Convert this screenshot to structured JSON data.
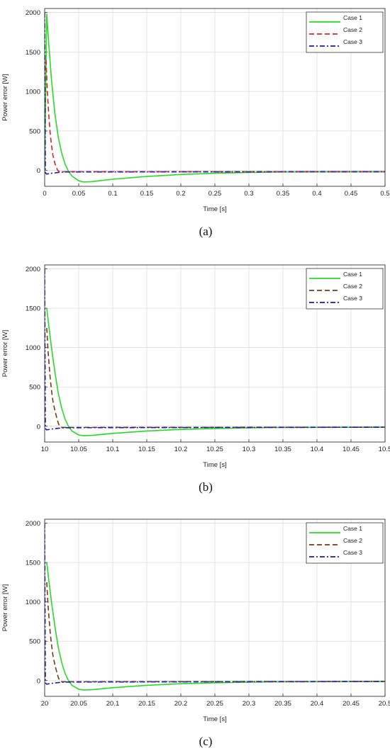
{
  "colors": {
    "case1": "#22dd22",
    "case2": "#dd2222",
    "case2_alt": "#7a3a12",
    "case3": "#1a1aaa",
    "grid": "#dcdcdc",
    "axis": "#333333"
  },
  "chart_data": [
    {
      "type": "line",
      "caption": "(a)",
      "xlabel": "Time [s]",
      "ylabel": "Power error [W]",
      "xlim": [
        0,
        0.5
      ],
      "ylim": [
        -200,
        2050
      ],
      "grid": true,
      "legend_position": "top-right",
      "x_ticks": [
        "0",
        "0.05",
        "0.1",
        "0.15",
        "0.2",
        "0.25",
        "0.3",
        "0.35",
        "0.4",
        "0.45",
        "0.5"
      ],
      "y_ticks": [
        "0",
        "500",
        "1000",
        "1500",
        "2000"
      ],
      "series": [
        {
          "name": "Case 1",
          "style": "solid",
          "color_key": "case1",
          "x": [
            0,
            0.003,
            0.006,
            0.01,
            0.015,
            0.02,
            0.025,
            0.03,
            0.035,
            0.04,
            0.05,
            0.057,
            0.07,
            0.1,
            0.15,
            0.2,
            0.25,
            0.3,
            0.35,
            0.5
          ],
          "y": [
            0,
            1980,
            1600,
            1150,
            720,
            420,
            220,
            80,
            -10,
            -70,
            -130,
            -145,
            -140,
            -110,
            -75,
            -50,
            -35,
            -25,
            -18,
            -15
          ]
        },
        {
          "name": "Case 2",
          "style": "dashed",
          "color_key": "case2",
          "x": [
            0.002,
            0.004,
            0.006,
            0.008,
            0.01,
            0.012,
            0.015,
            0.018,
            0.02,
            0.025,
            0.5
          ],
          "y": [
            1400,
            1000,
            700,
            480,
            320,
            200,
            90,
            20,
            -8,
            -15,
            -15
          ]
        },
        {
          "name": "Case 3",
          "style": "dashdot",
          "color_key": "case3",
          "x": [
            0,
            0.001,
            0.002,
            0.003,
            0.01,
            0.02,
            0.03,
            0.5
          ],
          "y": [
            2000,
            -20,
            -40,
            -45,
            -35,
            -25,
            -18,
            -15
          ]
        }
      ]
    },
    {
      "type": "line",
      "caption": "(b)",
      "xlabel": "Time [s]",
      "ylabel": "Power error [W]",
      "xlim": [
        10,
        10.5
      ],
      "ylim": [
        -200,
        2050
      ],
      "grid": true,
      "legend_position": "top-right",
      "x_ticks": [
        "10",
        "10.05",
        "10.1",
        "10.15",
        "10.2",
        "10.25",
        "10.3",
        "10.35",
        "10.4",
        "10.45",
        "10.5"
      ],
      "y_ticks": [
        "0",
        "500",
        "1000",
        "1500",
        "2000"
      ],
      "series": [
        {
          "name": "Case 1",
          "style": "solid",
          "color_key": "case1",
          "x": [
            10.003,
            10.006,
            10.01,
            10.015,
            10.02,
            10.025,
            10.03,
            10.035,
            10.04,
            10.05,
            10.057,
            10.07,
            10.1,
            10.15,
            10.2,
            10.25,
            10.3,
            10.35,
            10.5
          ],
          "y": [
            1500,
            1280,
            1000,
            690,
            420,
            230,
            90,
            0,
            -60,
            -110,
            -120,
            -115,
            -90,
            -60,
            -40,
            -28,
            -20,
            -15,
            -12
          ]
        },
        {
          "name": "Case 2",
          "style": "dashed",
          "color_key": "case2_alt",
          "x": [
            10.003,
            10.005,
            10.008,
            10.01,
            10.012,
            10.015,
            10.018,
            10.02,
            10.022,
            10.025,
            10.5
          ],
          "y": [
            1250,
            950,
            620,
            460,
            330,
            200,
            100,
            40,
            0,
            -15,
            -12
          ]
        },
        {
          "name": "Case 3",
          "style": "dashdot",
          "color_key": "case3",
          "x": [
            10,
            10.001,
            10.002,
            10.003,
            10.01,
            10.02,
            10.03,
            10.5
          ],
          "y": [
            2000,
            -20,
            -40,
            -45,
            -35,
            -25,
            -18,
            -12
          ]
        }
      ]
    },
    {
      "type": "line",
      "caption": "(c)",
      "xlabel": "Time [s]",
      "ylabel": "Power error [W]",
      "xlim": [
        20,
        20.5
      ],
      "ylim": [
        -200,
        2050
      ],
      "grid": true,
      "legend_position": "top-right",
      "x_ticks": [
        "20",
        "20.05",
        "20.1",
        "20.15",
        "20.2",
        "20.25",
        "20.3",
        "20.35",
        "20.4",
        "20.45",
        "20.5"
      ],
      "y_ticks": [
        "0",
        "500",
        "1000",
        "1500",
        "2000"
      ],
      "series": [
        {
          "name": "Case 1",
          "style": "solid",
          "color_key": "case1",
          "x": [
            20.003,
            20.006,
            20.01,
            20.015,
            20.02,
            20.025,
            20.03,
            20.035,
            20.04,
            20.05,
            20.057,
            20.07,
            20.1,
            20.15,
            20.2,
            20.25,
            20.3,
            20.35,
            20.5
          ],
          "y": [
            1500,
            1280,
            1000,
            690,
            420,
            230,
            90,
            0,
            -60,
            -110,
            -120,
            -115,
            -90,
            -60,
            -40,
            -28,
            -20,
            -15,
            -12
          ]
        },
        {
          "name": "Case 2",
          "style": "dashed",
          "color_key": "case2_alt",
          "x": [
            20.003,
            20.005,
            20.008,
            20.01,
            20.012,
            20.015,
            20.018,
            20.02,
            20.022,
            20.025,
            20.5
          ],
          "y": [
            1250,
            950,
            620,
            460,
            330,
            200,
            100,
            40,
            0,
            -15,
            -12
          ]
        },
        {
          "name": "Case 3",
          "style": "dashdot",
          "color_key": "case3",
          "x": [
            20,
            20.001,
            20.002,
            20.003,
            20.01,
            20.02,
            20.03,
            20.5
          ],
          "y": [
            2000,
            -20,
            -40,
            -45,
            -35,
            -25,
            -18,
            -12
          ]
        }
      ]
    }
  ]
}
